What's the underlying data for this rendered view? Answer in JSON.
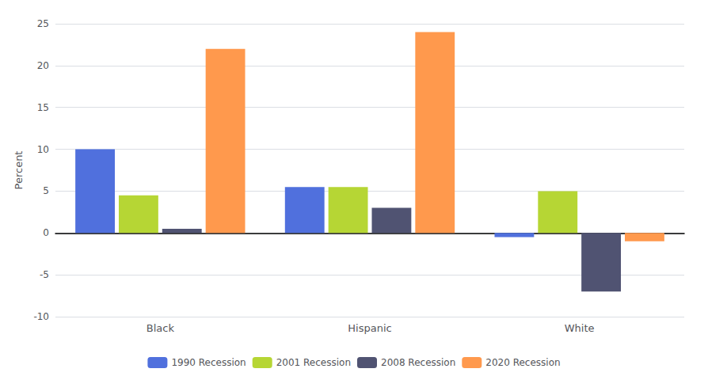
{
  "chart_data": {
    "type": "bar",
    "categories": [
      "Black",
      "Hispanic",
      "White"
    ],
    "series": [
      {
        "name": "1990 Recession",
        "values": [
          10,
          5.5,
          -0.5
        ]
      },
      {
        "name": "2001 Recession",
        "values": [
          4.5,
          5.5,
          5
        ]
      },
      {
        "name": "2008 Recession",
        "values": [
          0.5,
          3,
          -7
        ]
      },
      {
        "name": "2020 Recession",
        "values": [
          22,
          24,
          -1
        ]
      }
    ],
    "ylabel": "Percent",
    "ylim": [
      -10,
      25
    ],
    "yticks": [
      -10,
      -5,
      0,
      5,
      10,
      15,
      20,
      25
    ],
    "grid": true,
    "legend": "bottom"
  }
}
